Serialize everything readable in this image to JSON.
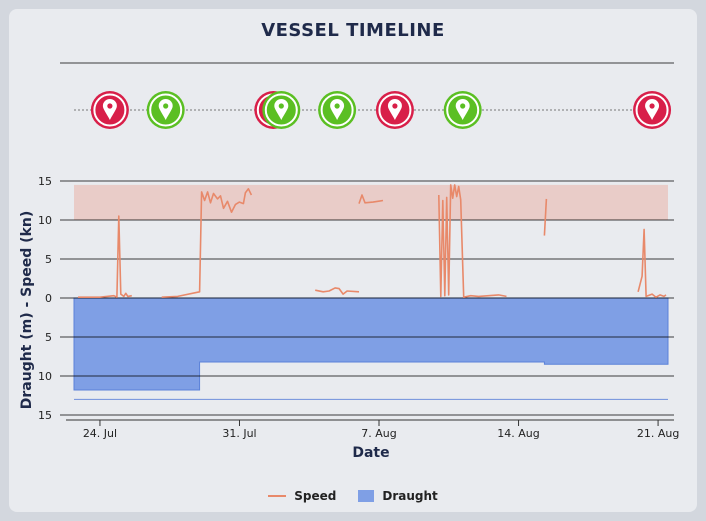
{
  "title": "VESSEL TIMELINE",
  "colors": {
    "speed": "#e8896a",
    "draught": "#7f9fe5",
    "band": "#e9c7c1",
    "red_marker": "#d81f49",
    "green_marker": "#5bbf23"
  },
  "events": [
    {
      "date": 25.1,
      "type": "red"
    },
    {
      "date": 27.9,
      "type": "green"
    },
    {
      "date": 33.3,
      "type": "red"
    },
    {
      "date": 33.7,
      "type": "green"
    },
    {
      "date": 36.5,
      "type": "green"
    },
    {
      "date": 39.4,
      "type": "red"
    },
    {
      "date": 42.8,
      "type": "green"
    },
    {
      "date": 52.3,
      "type": "red"
    }
  ],
  "chart_data": {
    "type": "line",
    "xlabel": "Date",
    "ylabel": "Draught (m) - Speed (kn)",
    "x_ticks": [
      {
        "value": 24,
        "label": "24. Jul"
      },
      {
        "value": 31,
        "label": "31. Jul"
      },
      {
        "value": 38,
        "label": "7. Aug"
      },
      {
        "value": 45,
        "label": "14. Aug"
      },
      {
        "value": 52,
        "label": "21. Aug"
      }
    ],
    "y_ticks": [
      {
        "value": 15,
        "label": "15"
      },
      {
        "value": 10,
        "label": "10"
      },
      {
        "value": 5,
        "label": "5"
      },
      {
        "value": 0,
        "label": "0"
      },
      {
        "value": -5,
        "label": "5"
      },
      {
        "value": -10,
        "label": "10"
      },
      {
        "value": -15,
        "label": "15"
      }
    ],
    "xlim": [
      23.3,
      53.1
    ],
    "ylim": [
      -15,
      15
    ],
    "speed_band": [
      10,
      14.5
    ],
    "series": [
      {
        "name": "Speed",
        "segments": [
          [
            [
              23.5,
              0.1
            ],
            [
              24.6,
              0.1
            ],
            [
              25.3,
              0.3
            ],
            [
              25.45,
              0.1
            ],
            [
              25.55,
              10.5
            ],
            [
              25.65,
              0.5
            ],
            [
              25.8,
              0.2
            ],
            [
              25.9,
              0.6
            ],
            [
              26.0,
              0.2
            ],
            [
              26.2,
              0.3
            ]
          ],
          [
            [
              27.7,
              0.1
            ],
            [
              28.5,
              0.2
            ],
            [
              29.6,
              0.8
            ],
            [
              29.7,
              13.6
            ],
            [
              29.85,
              12.5
            ],
            [
              30.0,
              13.6
            ],
            [
              30.15,
              12.2
            ],
            [
              30.3,
              13.4
            ],
            [
              30.5,
              12.7
            ],
            [
              30.65,
              13.1
            ],
            [
              30.8,
              11.5
            ],
            [
              31.0,
              12.4
            ],
            [
              31.2,
              11.0
            ],
            [
              31.4,
              12.0
            ],
            [
              31.6,
              12.3
            ],
            [
              31.8,
              12.1
            ],
            [
              31.9,
              13.5
            ],
            [
              32.05,
              14.0
            ],
            [
              32.2,
              13.2
            ]
          ],
          [
            [
              35.4,
              1.0
            ],
            [
              35.8,
              0.8
            ],
            [
              36.1,
              0.9
            ],
            [
              36.4,
              1.3
            ],
            [
              36.6,
              1.2
            ],
            [
              36.8,
              0.5
            ],
            [
              37.0,
              0.9
            ],
            [
              37.6,
              0.8
            ]
          ],
          [
            [
              37.6,
              12.1
            ],
            [
              37.75,
              13.2
            ],
            [
              37.9,
              12.2
            ],
            [
              38.3,
              12.3
            ],
            [
              38.8,
              12.5
            ]
          ],
          [
            [
              41.6,
              13.2
            ],
            [
              41.7,
              0.2
            ],
            [
              41.8,
              12.5
            ],
            [
              41.9,
              0.3
            ],
            [
              42.0,
              12.9
            ],
            [
              42.1,
              0.4
            ],
            [
              42.2,
              14.5
            ],
            [
              42.3,
              12.8
            ],
            [
              42.4,
              14.5
            ],
            [
              42.5,
              13.0
            ],
            [
              42.6,
              14.3
            ],
            [
              42.7,
              12.6
            ],
            [
              42.85,
              0.1
            ],
            [
              43.2,
              0.3
            ],
            [
              43.6,
              0.2
            ],
            [
              44.6,
              0.4
            ],
            [
              45.0,
              0.2
            ]
          ],
          [
            [
              46.9,
              8.0
            ],
            [
              47.0,
              12.7
            ]
          ],
          [
            [
              51.6,
              0.8
            ],
            [
              51.8,
              2.8
            ],
            [
              51.9,
              8.8
            ],
            [
              52.0,
              0.2
            ],
            [
              52.3,
              0.5
            ],
            [
              52.5,
              0.1
            ],
            [
              52.7,
              0.4
            ],
            [
              52.9,
              0.2
            ],
            [
              53.0,
              0.4
            ]
          ]
        ]
      },
      {
        "name": "Draught",
        "steps": [
          {
            "from": 23.3,
            "to": 29.6,
            "value": 11.8
          },
          {
            "from": 29.6,
            "to": 46.9,
            "value": 8.2
          },
          {
            "from": 46.9,
            "to": 53.1,
            "value": 8.5
          }
        ],
        "reference_line": 13.0
      }
    ]
  },
  "legend": [
    {
      "label": "Speed"
    },
    {
      "label": "Draught"
    }
  ]
}
